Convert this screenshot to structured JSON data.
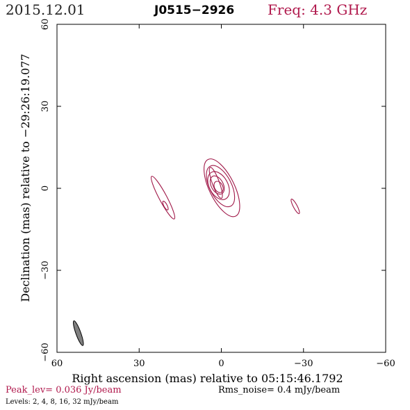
{
  "header": {
    "date": "2015.12.01",
    "source": "J0515−2926",
    "frequency": "Freq: 4.3 GHz"
  },
  "colors": {
    "accent": "#b0184c",
    "contour": "#a01848",
    "beam_fill": "#808080",
    "axes": "#000000"
  },
  "chart_data": {
    "type": "contour",
    "xlabel": "Right ascension (mas) relative to 05:15:46.1792",
    "ylabel": "Declination (mas) relative to −29:26:19.077",
    "xlim": [
      60,
      -60
    ],
    "ylim": [
      -60,
      60
    ],
    "xticks": [
      60,
      30,
      0,
      -30,
      -60
    ],
    "yticks": [
      60,
      30,
      0,
      -30,
      -60
    ],
    "x_tick_labels": [
      "60",
      "30",
      "0",
      "−30",
      "−60"
    ],
    "y_tick_labels": [
      "60",
      "30",
      "0",
      "−30",
      "−60"
    ],
    "contours": [
      {
        "component": "core",
        "cx": 1.0,
        "cy": 0.5,
        "rx": 2.2,
        "ry": 1.5,
        "angle": 62
      },
      {
        "component": "core",
        "cx": 1.5,
        "cy": 1.2,
        "rx": 3.6,
        "ry": 2.2,
        "angle": 62
      },
      {
        "component": "core",
        "cx": 1.0,
        "cy": 1.0,
        "rx": 5.5,
        "ry": 3.4,
        "angle": 62
      },
      {
        "component": "core",
        "cx": 0.3,
        "cy": 0.8,
        "rx": 8.2,
        "ry": 4.0,
        "angle": 63
      },
      {
        "component": "core",
        "cx": -0.2,
        "cy": 0.2,
        "rx": 11.5,
        "ry": 4.6,
        "angle": 64
      },
      {
        "component": "core-east",
        "cx": 2.0,
        "cy": 2.0,
        "rx": 6.0,
        "ry": 1.3,
        "angle": 70
      },
      {
        "component": "jet-east",
        "cx": 21.3,
        "cy": -3.4,
        "rx": 8.8,
        "ry": 1.4,
        "angle": 62
      },
      {
        "component": "jet-east",
        "cx": 20.4,
        "cy": -6.3,
        "rx": 1.8,
        "ry": 0.6,
        "angle": 62
      },
      {
        "component": "west",
        "cx": -27.0,
        "cy": -6.6,
        "rx": 3.0,
        "ry": 0.7,
        "angle": 62
      }
    ],
    "beam": {
      "cx": 52.2,
      "cy": -53.0,
      "major": 4.8,
      "minor": 0.9,
      "angle": 70
    },
    "peak_level": "Peak_lev=  0.036 Jy/beam",
    "rms_noise": "Rms_noise=   0.4 mJy/beam",
    "levels": "Levels:    2,    4,    8,   16,   32 mJy/beam"
  }
}
